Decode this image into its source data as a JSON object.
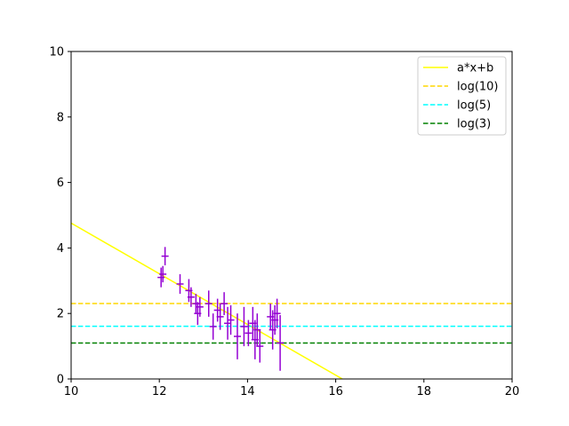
{
  "chart_data": {
    "type": "scatter",
    "title": "",
    "xlabel": "",
    "ylabel": "",
    "xlim": [
      10,
      20
    ],
    "ylim": [
      0,
      10
    ],
    "xticks": [
      10,
      12,
      14,
      16,
      18,
      20
    ],
    "yticks": [
      0,
      2,
      4,
      6,
      8,
      10
    ],
    "grid": false,
    "legend_position": "top-right",
    "legend": [
      {
        "label": "a*x+b",
        "color": "#ffff00",
        "style": "solid"
      },
      {
        "label": "log(10)",
        "color": "#ffd700",
        "style": "dashed"
      },
      {
        "label": "log(5)",
        "color": "#00ffff",
        "style": "dashed"
      },
      {
        "label": "log(3)",
        "color": "#008000",
        "style": "dashed"
      }
    ],
    "fit_line": {
      "name": "a*x+b",
      "color": "#ffff00",
      "x": [
        10,
        16.15
      ],
      "y": [
        4.76,
        0
      ]
    },
    "hlines": [
      {
        "name": "log(10)",
        "y": 2.303,
        "color": "#ffd700"
      },
      {
        "name": "log(5)",
        "y": 1.609,
        "color": "#00ffff"
      },
      {
        "name": "log(3)",
        "y": 1.099,
        "color": "#008000"
      }
    ],
    "errorbar_series": {
      "color": "#9400d3",
      "points": [
        {
          "x": 12.04,
          "y": 3.1,
          "yerr": 0.3
        },
        {
          "x": 12.08,
          "y": 3.2,
          "yerr": 0.25
        },
        {
          "x": 12.13,
          "y": 3.75,
          "yerr": 0.28
        },
        {
          "x": 12.47,
          "y": 2.9,
          "yerr": 0.3
        },
        {
          "x": 12.67,
          "y": 2.7,
          "yerr": 0.35
        },
        {
          "x": 12.72,
          "y": 2.5,
          "yerr": 0.3
        },
        {
          "x": 12.83,
          "y": 2.3,
          "yerr": 0.3
        },
        {
          "x": 12.87,
          "y": 2.0,
          "yerr": 0.35
        },
        {
          "x": 12.92,
          "y": 2.2,
          "yerr": 0.3
        },
        {
          "x": 13.12,
          "y": 2.3,
          "yerr": 0.4
        },
        {
          "x": 13.22,
          "y": 1.6,
          "yerr": 0.4
        },
        {
          "x": 13.32,
          "y": 2.1,
          "yerr": 0.35
        },
        {
          "x": 13.38,
          "y": 1.9,
          "yerr": 0.4
        },
        {
          "x": 13.47,
          "y": 2.3,
          "yerr": 0.35
        },
        {
          "x": 13.55,
          "y": 1.7,
          "yerr": 0.5
        },
        {
          "x": 13.62,
          "y": 1.8,
          "yerr": 0.45
        },
        {
          "x": 13.77,
          "y": 1.3,
          "yerr": 0.7
        },
        {
          "x": 13.92,
          "y": 1.6,
          "yerr": 0.6
        },
        {
          "x": 14.02,
          "y": 1.4,
          "yerr": 0.4
        },
        {
          "x": 14.12,
          "y": 1.7,
          "yerr": 0.5
        },
        {
          "x": 14.17,
          "y": 1.2,
          "yerr": 0.6
        },
        {
          "x": 14.22,
          "y": 1.5,
          "yerr": 0.5
        },
        {
          "x": 14.28,
          "y": 1.0,
          "yerr": 0.5
        },
        {
          "x": 14.52,
          "y": 1.9,
          "yerr": 0.4
        },
        {
          "x": 14.57,
          "y": 1.5,
          "yerr": 0.6
        },
        {
          "x": 14.62,
          "y": 1.8,
          "yerr": 0.45
        },
        {
          "x": 14.67,
          "y": 2.0,
          "yerr": 0.45
        },
        {
          "x": 14.74,
          "y": 1.1,
          "yerr": 0.85
        }
      ]
    }
  }
}
